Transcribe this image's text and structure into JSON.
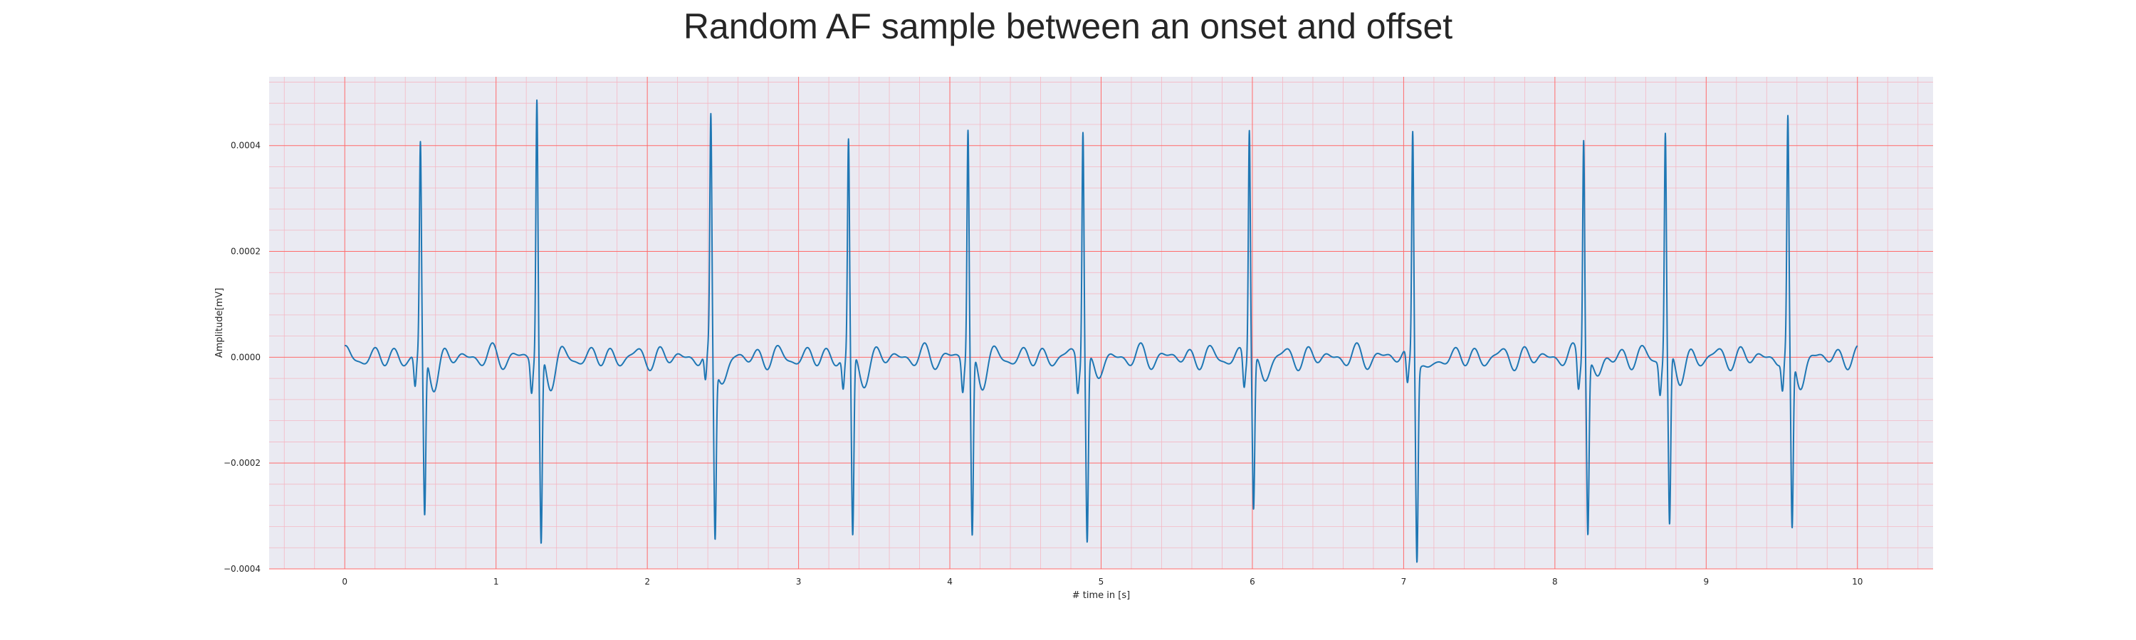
{
  "chart_data": {
    "type": "line",
    "title": "Random AF sample between an onset and offset",
    "xlabel": "# time in [s]",
    "ylabel": "Amplitude[mV]",
    "xlim": [
      -0.5,
      10.5
    ],
    "ylim": [
      -0.0004,
      0.00053
    ],
    "xticks": [
      0,
      1,
      2,
      3,
      4,
      5,
      6,
      7,
      8,
      9,
      10
    ],
    "yticks": [
      -0.0004,
      -0.0002,
      0.0,
      0.0002,
      0.0004
    ],
    "ytick_labels": [
      "−0.0004",
      "−0.0002",
      "0.0000",
      "0.0002",
      "0.0004"
    ],
    "grid": true,
    "minor_grid": true,
    "colors": {
      "line": "#1f77b4",
      "plot_background": "#eaeaf2",
      "major_grid": "#ff6b6b",
      "minor_grid": "#f4b8c4"
    },
    "series": [
      {
        "beats": [
          {
            "t": 0.5,
            "peak": 0.000395,
            "trough": -0.000308
          },
          {
            "t": 1.27,
            "peak": 0.000485,
            "trough": -0.000362
          },
          {
            "t": 2.42,
            "peak": 0.00044,
            "trough": -0.000332
          },
          {
            "t": 3.33,
            "peak": 0.000407,
            "trough": -0.000345
          },
          {
            "t": 4.12,
            "peak": 0.000432,
            "trough": -0.000345
          },
          {
            "t": 4.88,
            "peak": 0.00045,
            "trough": -0.000342
          },
          {
            "t": 5.98,
            "peak": 0.000445,
            "trough": -0.000282
          },
          {
            "t": 7.06,
            "peak": 0.000443,
            "trough": -0.000362
          },
          {
            "t": 8.19,
            "peak": 0.000433,
            "trough": -0.000322
          },
          {
            "t": 8.73,
            "peak": 0.000428,
            "trough": -0.000325
          },
          {
            "t": 9.54,
            "peak": 0.000432,
            "trough": -0.000335
          }
        ],
        "t_start": 0.0,
        "t_end": 10.0,
        "baseline_fibrillation_amplitude": 4e-05
      }
    ]
  }
}
